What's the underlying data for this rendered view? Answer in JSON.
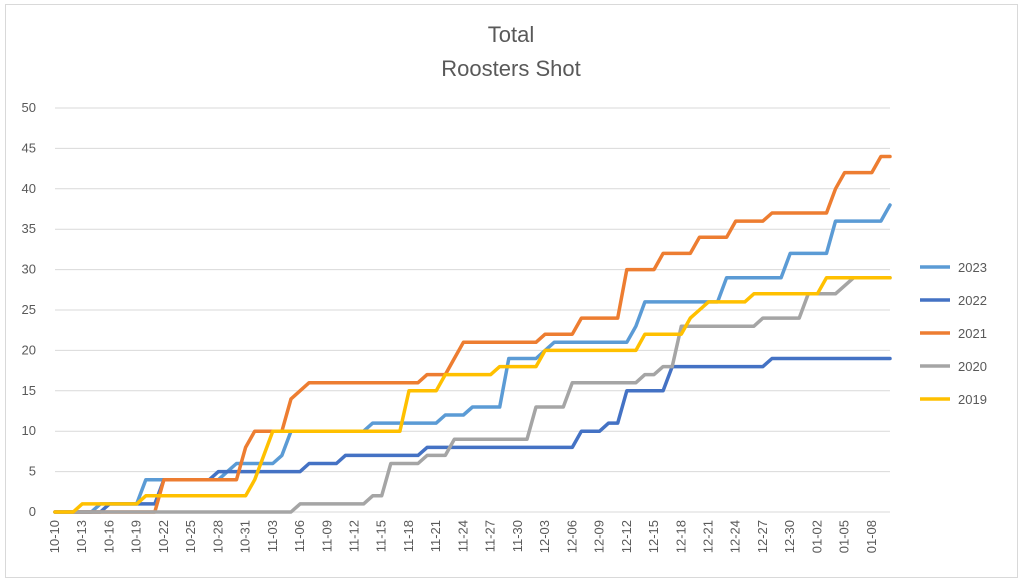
{
  "chart_data": {
    "type": "line",
    "title": "Total",
    "subtitle": "Roosters Shot",
    "xlabel": "",
    "ylabel": "",
    "ylim": [
      0,
      50
    ],
    "yticks": [
      0,
      5,
      10,
      15,
      20,
      25,
      30,
      35,
      40,
      45,
      50
    ],
    "grid": true,
    "legend": "right",
    "x_tick_labels": [
      "10-10",
      "10-13",
      "10-16",
      "10-19",
      "10-22",
      "10-25",
      "10-28",
      "10-31",
      "11-03",
      "11-06",
      "11-09",
      "11-12",
      "11-15",
      "11-18",
      "11-21",
      "11-24",
      "11-27",
      "11-30",
      "12-03",
      "12-06",
      "12-09",
      "12-12",
      "12-15",
      "12-18",
      "12-21",
      "12-24",
      "12-27",
      "12-30",
      "01-02",
      "01-05",
      "01-08"
    ],
    "series": [
      {
        "name": "2023",
        "color": "#5b9bd5",
        "points": [
          [
            0,
            0
          ],
          [
            4,
            0
          ],
          [
            5,
            1
          ],
          [
            9,
            1
          ],
          [
            10,
            4
          ],
          [
            18,
            4
          ],
          [
            19,
            5
          ],
          [
            20,
            6
          ],
          [
            24,
            6
          ],
          [
            25,
            7
          ],
          [
            26,
            10
          ],
          [
            34,
            10
          ],
          [
            35,
            11
          ],
          [
            42,
            11
          ],
          [
            43,
            12
          ],
          [
            45,
            12
          ],
          [
            46,
            13
          ],
          [
            49,
            13
          ],
          [
            50,
            19
          ],
          [
            53,
            19
          ],
          [
            54,
            20
          ],
          [
            55,
            21
          ],
          [
            63,
            21
          ],
          [
            64,
            23
          ],
          [
            65,
            26
          ],
          [
            73,
            26
          ],
          [
            74,
            29
          ],
          [
            80,
            29
          ],
          [
            81,
            32
          ],
          [
            85,
            32
          ],
          [
            86,
            36
          ],
          [
            91,
            36
          ],
          [
            92,
            38
          ]
        ]
      },
      {
        "name": "2022",
        "color": "#4472c4",
        "points": [
          [
            0,
            0
          ],
          [
            5,
            0
          ],
          [
            6,
            1
          ],
          [
            11,
            1
          ],
          [
            12,
            4
          ],
          [
            17,
            4
          ],
          [
            18,
            5
          ],
          [
            27,
            5
          ],
          [
            28,
            6
          ],
          [
            31,
            6
          ],
          [
            32,
            7
          ],
          [
            40,
            7
          ],
          [
            41,
            8
          ],
          [
            57,
            8
          ],
          [
            58,
            10
          ],
          [
            60,
            10
          ],
          [
            61,
            11
          ],
          [
            62,
            11
          ],
          [
            63,
            15
          ],
          [
            67,
            15
          ],
          [
            68,
            18
          ],
          [
            78,
            18
          ],
          [
            79,
            19
          ],
          [
            92,
            19
          ]
        ]
      },
      {
        "name": "2021",
        "color": "#ed7d31",
        "points": [
          [
            0,
            0
          ],
          [
            11,
            0
          ],
          [
            12,
            4
          ],
          [
            20,
            4
          ],
          [
            21,
            8
          ],
          [
            22,
            10
          ],
          [
            25,
            10
          ],
          [
            26,
            14
          ],
          [
            28,
            16
          ],
          [
            40,
            16
          ],
          [
            41,
            17
          ],
          [
            43,
            17
          ],
          [
            44,
            19
          ],
          [
            45,
            21
          ],
          [
            53,
            21
          ],
          [
            54,
            22
          ],
          [
            57,
            22
          ],
          [
            58,
            24
          ],
          [
            62,
            24
          ],
          [
            63,
            30
          ],
          [
            66,
            30
          ],
          [
            67,
            32
          ],
          [
            70,
            32
          ],
          [
            71,
            34
          ],
          [
            74,
            34
          ],
          [
            75,
            36
          ],
          [
            78,
            36
          ],
          [
            79,
            37
          ],
          [
            85,
            37
          ],
          [
            86,
            40
          ],
          [
            87,
            42
          ],
          [
            90,
            42
          ],
          [
            91,
            44
          ],
          [
            92,
            44
          ]
        ]
      },
      {
        "name": "2020",
        "color": "#a5a5a5",
        "points": [
          [
            0,
            0
          ],
          [
            26,
            0
          ],
          [
            27,
            1
          ],
          [
            34,
            1
          ],
          [
            35,
            2
          ],
          [
            36,
            2
          ],
          [
            37,
            6
          ],
          [
            40,
            6
          ],
          [
            41,
            7
          ],
          [
            43,
            7
          ],
          [
            44,
            9
          ],
          [
            52,
            9
          ],
          [
            53,
            13
          ],
          [
            56,
            13
          ],
          [
            57,
            16
          ],
          [
            64,
            16
          ],
          [
            65,
            17
          ],
          [
            66,
            17
          ],
          [
            67,
            18
          ],
          [
            68,
            18
          ],
          [
            69,
            23
          ],
          [
            77,
            23
          ],
          [
            78,
            24
          ],
          [
            82,
            24
          ],
          [
            83,
            27
          ],
          [
            86,
            27
          ],
          [
            88,
            29
          ],
          [
            92,
            29
          ]
        ]
      },
      {
        "name": "2019",
        "color": "#ffc000",
        "points": [
          [
            0,
            0
          ],
          [
            2,
            0
          ],
          [
            3,
            1
          ],
          [
            9,
            1
          ],
          [
            10,
            2
          ],
          [
            21,
            2
          ],
          [
            22,
            4
          ],
          [
            23,
            7
          ],
          [
            24,
            10
          ],
          [
            38,
            10
          ],
          [
            39,
            15
          ],
          [
            42,
            15
          ],
          [
            43,
            17
          ],
          [
            48,
            17
          ],
          [
            49,
            18
          ],
          [
            53,
            18
          ],
          [
            54,
            20
          ],
          [
            64,
            20
          ],
          [
            65,
            22
          ],
          [
            69,
            22
          ],
          [
            70,
            24
          ],
          [
            71,
            25
          ],
          [
            72,
            26
          ],
          [
            76,
            26
          ],
          [
            77,
            27
          ],
          [
            84,
            27
          ],
          [
            85,
            29
          ],
          [
            92,
            29
          ]
        ]
      }
    ]
  }
}
